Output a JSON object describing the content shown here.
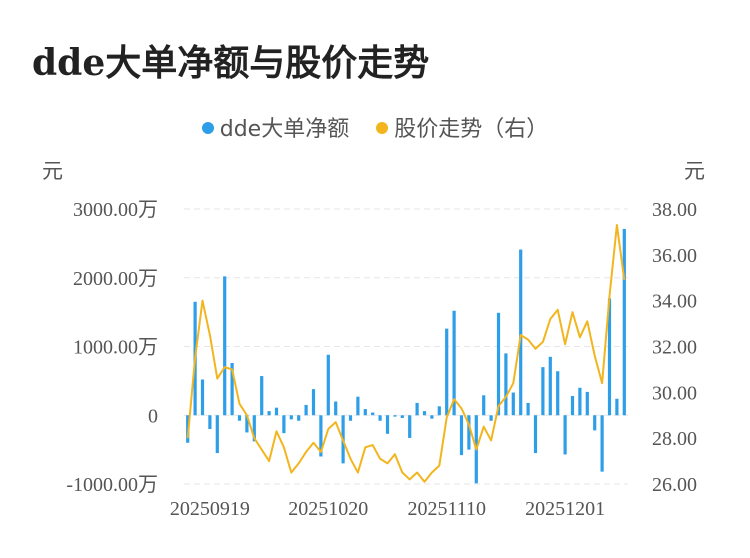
{
  "chart_data": {
    "type": "bar+line",
    "title": "dde大单净额与股价走势",
    "legend": {
      "position": "top",
      "items": [
        {
          "label": "dde大单净额",
          "color": "#2e9ee8"
        },
        {
          "label": "股价走势（右）",
          "color": "#f2b51e"
        }
      ]
    },
    "y_left": {
      "unit": "元",
      "ticks": [
        "3000.00万",
        "2000.00万",
        "1000.00万",
        "0",
        "-1000.00万"
      ],
      "range": [
        -1000,
        3000
      ]
    },
    "y_right": {
      "unit": "元",
      "ticks": [
        "38.00",
        "36.00",
        "34.00",
        "32.00",
        "30.00",
        "28.00",
        "26.00"
      ],
      "range": [
        26,
        38
      ]
    },
    "x_labels": [
      "20250919",
      "20251020",
      "20251110",
      "20251201"
    ],
    "x_label_positions": [
      3,
      19,
      35,
      51
    ],
    "series": [
      {
        "name": "dde大单净额",
        "type": "bar",
        "color": "#2e9ee8",
        "values": [
          -400,
          1650,
          520,
          -200,
          -550,
          2020,
          760,
          -80,
          -250,
          -380,
          570,
          60,
          110,
          -260,
          -60,
          -80,
          150,
          380,
          -600,
          880,
          200,
          -700,
          -80,
          270,
          90,
          40,
          -80,
          -270,
          -20,
          -40,
          -330,
          180,
          60,
          -50,
          130,
          1260,
          1520,
          -580,
          -500,
          -990,
          290,
          -80,
          1490,
          900,
          330,
          2410,
          180,
          -550,
          700,
          850,
          640,
          -570,
          280,
          400,
          340,
          -220,
          -820,
          1700,
          240,
          2710
        ]
      },
      {
        "name": "股价走势（右）",
        "type": "line",
        "color": "#f2b51e",
        "values": [
          28.0,
          31.5,
          34.0,
          32.5,
          30.6,
          31.1,
          31.0,
          29.5,
          29.0,
          28.0,
          27.5,
          27.0,
          28.3,
          27.6,
          26.5,
          26.9,
          27.4,
          27.8,
          27.4,
          28.4,
          28.7,
          27.9,
          27.1,
          26.5,
          27.6,
          27.7,
          27.1,
          26.9,
          27.3,
          26.5,
          26.2,
          26.5,
          26.1,
          26.5,
          26.8,
          28.9,
          29.7,
          29.3,
          28.6,
          27.5,
          28.5,
          27.9,
          29.4,
          29.8,
          30.4,
          32.5,
          32.3,
          31.9,
          32.2,
          33.2,
          33.6,
          32.1,
          33.5,
          32.4,
          33.1,
          31.6,
          30.4,
          34.2,
          37.3,
          34.9
        ]
      }
    ]
  }
}
